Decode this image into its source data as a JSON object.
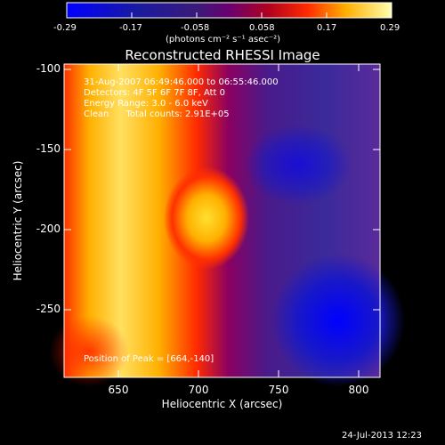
{
  "colorbar": {
    "tick_labels": [
      "-0.29",
      "-0.17",
      "-0.058",
      "0.058",
      "0.17",
      "0.29"
    ],
    "unit_label": "(photons cm⁻² s⁻¹ asec⁻²)"
  },
  "title": "Reconstructed RHESSI Image",
  "info": {
    "line1": "31-Aug-2007 06:49:46.000 to 06:55:46.000",
    "line2": "Detectors: 4F 5F 6F 7F 8F, Att 0",
    "line3": "Energy Range: 3.0 - 6.0 keV",
    "line4": "Clean      Total counts: 2.91E+05"
  },
  "peak_text": "Position of Peak = [664,-140]",
  "axes": {
    "xlabel": "Heliocentric X (arcsec)",
    "ylabel": "Heliocentric Y (arcsec)",
    "x_ticks": [
      "650",
      "700",
      "750",
      "800"
    ],
    "y_ticks": [
      "-100",
      "-150",
      "-200",
      "-250"
    ]
  },
  "footer_timestamp": "24-Jul-2013 12:23"
}
